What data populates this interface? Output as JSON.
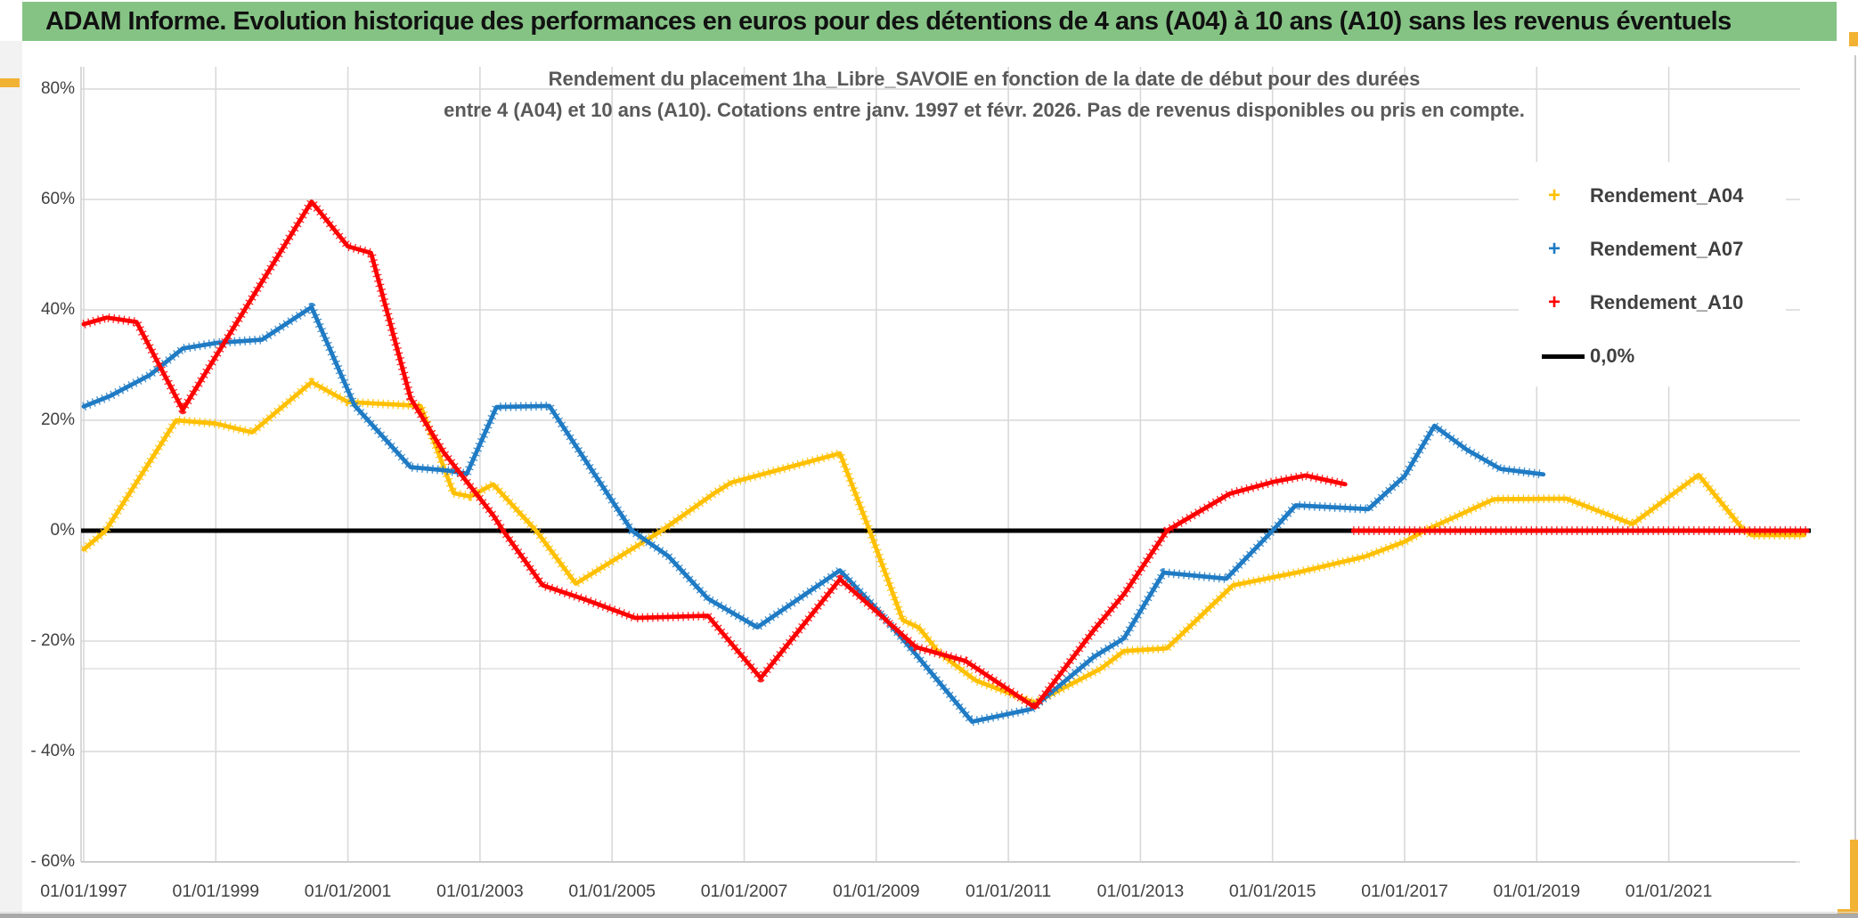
{
  "banner": {
    "title": "ADAM Informe. Evolution historique des performances en euros pour des détentions de 4 ans (A04) à 10 ans (A10) sans les revenus éventuels"
  },
  "chart_data": {
    "type": "scatter",
    "title_line1": "Rendement du placement 1ha_Libre_SAVOIE en fonction de la date de début pour des durées",
    "title_line2": "entre 4 (A04) et 10 ans (A10). Cotations entre janv. 1997 et févr. 2026. Pas de revenus disponibles ou pris en compte.",
    "grid": true,
    "legend_position": "right-top",
    "colors": {
      "a04": "#FFC000",
      "a07": "#1F7BC4",
      "a10": "#FF0000",
      "zero": "#000000",
      "gridline": "#D9D9D9",
      "axis_text": "#404040",
      "title_text": "#595959"
    },
    "x_axis": {
      "tick_labels": [
        "01/01/1997",
        "01/01/1999",
        "01/01/2001",
        "01/01/2003",
        "01/01/2005",
        "01/01/2007",
        "01/01/2009",
        "01/01/2011",
        "01/01/2013",
        "01/01/2015",
        "01/01/2017",
        "01/01/2019",
        "01/01/2021"
      ],
      "tick_years": [
        1997,
        1999,
        2001,
        2003,
        2005,
        2007,
        2009,
        2011,
        2013,
        2015,
        2017,
        2019,
        2021
      ],
      "min_year": 1996.96,
      "max_year": 2023.3
    },
    "y_axis": {
      "tick_labels": [
        "80%",
        "60%",
        "40%",
        "20%",
        "0%",
        "- 20%",
        "- 40%",
        "- 60%"
      ],
      "tick_values": [
        80,
        60,
        40,
        20,
        0,
        -20,
        -40,
        -60
      ],
      "min": -60,
      "max": 80,
      "extra_faint_line_value": -25
    },
    "zero_line": {
      "label": "0,0%",
      "value": 0,
      "span_years": [
        1996.96,
        2023.15
      ]
    },
    "series": [
      {
        "name": "Rendement_A04",
        "marker": "+",
        "color": "#FFC000",
        "points": [
          [
            1997.0,
            -3.4
          ],
          [
            1997.33,
            0
          ],
          [
            1998.0,
            12.5
          ],
          [
            1998.4,
            20.0
          ],
          [
            1999.0,
            19.4
          ],
          [
            1999.55,
            17.8
          ],
          [
            2000.45,
            26.9
          ],
          [
            2001.0,
            23.3
          ],
          [
            2002.1,
            22.6
          ],
          [
            2002.6,
            6.8
          ],
          [
            2002.85,
            6.2
          ],
          [
            2003.2,
            8.4
          ],
          [
            2003.85,
            0
          ],
          [
            2004.45,
            -9.6
          ],
          [
            2005.75,
            0
          ],
          [
            2006.55,
            6.8
          ],
          [
            2006.8,
            8.7
          ],
          [
            2008.45,
            14.0
          ],
          [
            2008.9,
            0
          ],
          [
            2009.4,
            -16.2
          ],
          [
            2009.65,
            -17.6
          ],
          [
            2009.95,
            -22.1
          ],
          [
            2010.5,
            -27.1
          ],
          [
            2011.4,
            -31.2
          ],
          [
            2012.4,
            -25.0
          ],
          [
            2012.75,
            -21.8
          ],
          [
            2013.4,
            -21.3
          ],
          [
            2014.4,
            -9.9
          ],
          [
            2015.4,
            -7.5
          ],
          [
            2016.4,
            -4.7
          ],
          [
            2017.0,
            -2.0
          ],
          [
            2017.3,
            0
          ],
          [
            2018.35,
            5.7
          ],
          [
            2019.45,
            5.8
          ],
          [
            2020.45,
            1.2
          ],
          [
            2021.45,
            10.1
          ],
          [
            2022.1,
            0.6
          ],
          [
            2022.25,
            -0.8
          ],
          [
            2023.05,
            -0.8
          ]
        ]
      },
      {
        "name": "Rendement_A07",
        "marker": "+",
        "color": "#1F7BC4",
        "points": [
          [
            1997.0,
            22.5
          ],
          [
            1997.4,
            24.4
          ],
          [
            1998.0,
            28.2
          ],
          [
            1998.5,
            33.0
          ],
          [
            1999.0,
            34.0
          ],
          [
            1999.7,
            34.6
          ],
          [
            2000.45,
            40.5
          ],
          [
            2001.1,
            22.7
          ],
          [
            2001.95,
            11.5
          ],
          [
            2002.5,
            10.9
          ],
          [
            2002.8,
            10.3
          ],
          [
            2003.25,
            22.4
          ],
          [
            2004.05,
            22.6
          ],
          [
            2005.3,
            0
          ],
          [
            2005.85,
            -4.6
          ],
          [
            2006.45,
            -12.3
          ],
          [
            2007.2,
            -17.5
          ],
          [
            2008.45,
            -7.2
          ],
          [
            2009.0,
            -14.1
          ],
          [
            2009.6,
            -22.4
          ],
          [
            2010.45,
            -34.6
          ],
          [
            2011.35,
            -32.3
          ],
          [
            2012.3,
            -22.8
          ],
          [
            2012.75,
            -19.5
          ],
          [
            2013.35,
            -7.6
          ],
          [
            2014.3,
            -8.7
          ],
          [
            2015.0,
            0
          ],
          [
            2015.35,
            4.6
          ],
          [
            2016.45,
            3.9
          ],
          [
            2017.0,
            9.9
          ],
          [
            2017.45,
            19.0
          ],
          [
            2017.95,
            14.6
          ],
          [
            2018.45,
            11.2
          ],
          [
            2019.1,
            10.2
          ]
        ]
      },
      {
        "name": "Rendement_A10",
        "marker": "+",
        "color": "#FF0000",
        "points": [
          [
            1997.0,
            37.4
          ],
          [
            1997.35,
            38.6
          ],
          [
            1997.8,
            37.8
          ],
          [
            1998.5,
            21.9
          ],
          [
            2000.45,
            59.6
          ],
          [
            2001.0,
            51.5
          ],
          [
            2001.35,
            50.3
          ],
          [
            2001.95,
            24.0
          ],
          [
            2002.45,
            14.2
          ],
          [
            2003.2,
            2.8
          ],
          [
            2003.35,
            0
          ],
          [
            2003.95,
            -9.9
          ],
          [
            2004.6,
            -12.5
          ],
          [
            2005.35,
            -15.8
          ],
          [
            2006.45,
            -15.4
          ],
          [
            2007.25,
            -26.7
          ],
          [
            2008.45,
            -8.8
          ],
          [
            2009.0,
            -14.6
          ],
          [
            2009.6,
            -21.1
          ],
          [
            2010.35,
            -23.6
          ],
          [
            2011.4,
            -32.0
          ],
          [
            2012.3,
            -17.9
          ],
          [
            2012.75,
            -11.5
          ],
          [
            2013.4,
            0
          ],
          [
            2014.35,
            6.7
          ],
          [
            2015.0,
            8.8
          ],
          [
            2015.5,
            10.0
          ],
          [
            2016.1,
            8.4
          ]
        ],
        "zero_fill_segment": [
          [
            2016.22,
            0
          ],
          [
            2023.1,
            0
          ]
        ]
      }
    ]
  },
  "legend": {
    "items": [
      {
        "label": "Rendement_A04",
        "marker": "+",
        "color": "#FFC000"
      },
      {
        "label": "Rendement_A07",
        "marker": "+",
        "color": "#1F7BC4"
      },
      {
        "label": "Rendement_A10",
        "marker": "+",
        "color": "#FF0000"
      },
      {
        "label": "0,0%",
        "marker": "line",
        "color": "#000000"
      }
    ]
  }
}
